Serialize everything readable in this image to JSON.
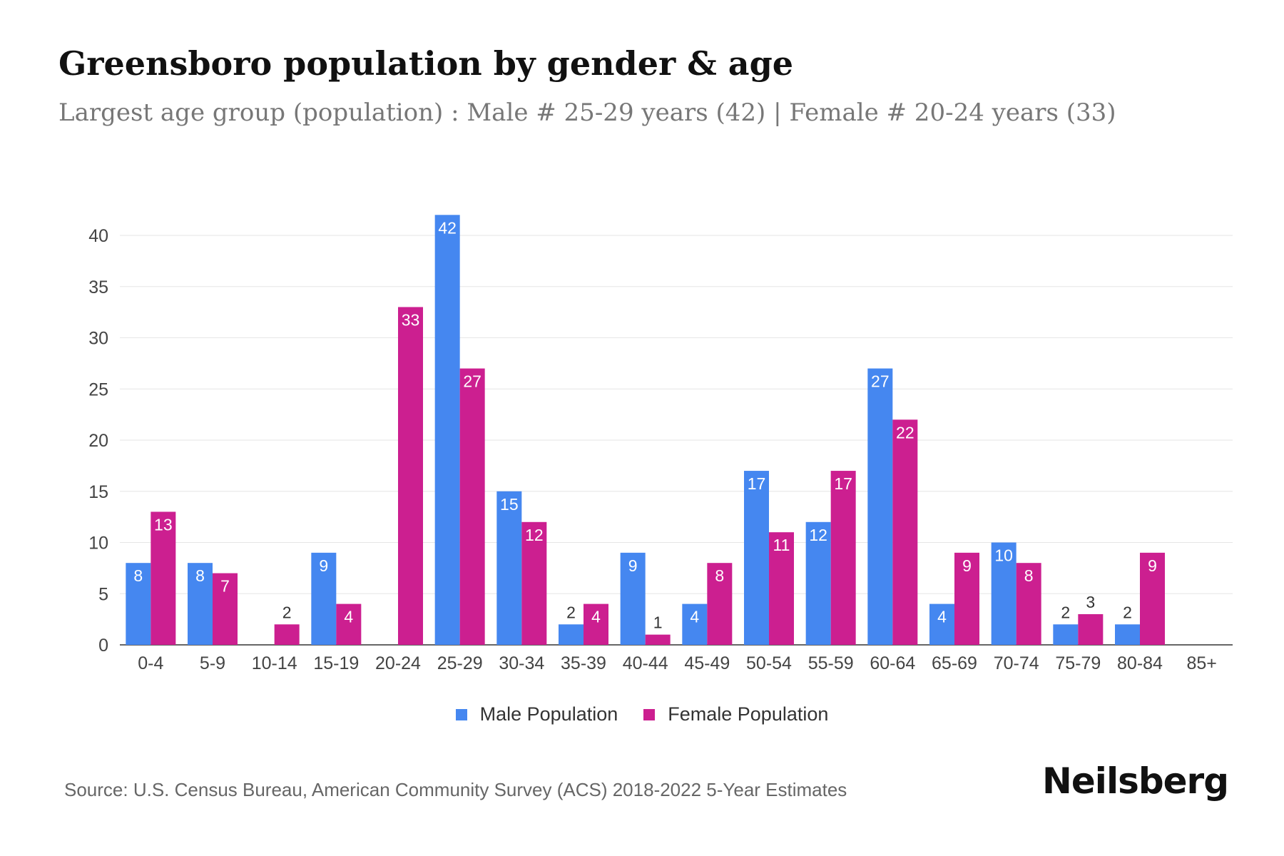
{
  "chart_data": {
    "type": "bar",
    "title": "Greensboro population by gender & age",
    "subtitle": "Largest age group (population) : Male # 25-29 years (42) | Female # 20-24 years (33)",
    "categories": [
      "0-4",
      "5-9",
      "10-14",
      "15-19",
      "20-24",
      "25-29",
      "30-34",
      "35-39",
      "40-44",
      "45-49",
      "50-54",
      "55-59",
      "60-64",
      "65-69",
      "70-74",
      "75-79",
      "80-84",
      "85+"
    ],
    "series": [
      {
        "name": "Male Population",
        "color": "#4587f0",
        "values": [
          8,
          8,
          0,
          9,
          0,
          42,
          15,
          2,
          9,
          4,
          17,
          12,
          27,
          4,
          10,
          2,
          2,
          0
        ]
      },
      {
        "name": "Female Population",
        "color": "#cc1f90",
        "values": [
          13,
          7,
          2,
          4,
          33,
          27,
          12,
          4,
          1,
          8,
          11,
          17,
          22,
          9,
          8,
          3,
          9,
          0
        ]
      }
    ],
    "yticks": [
      0,
      5,
      10,
      15,
      20,
      25,
      30,
      35,
      40
    ],
    "ylim": [
      0,
      42
    ],
    "xlabel": "",
    "ylabel": "",
    "grid": true,
    "legend_position": "bottom-center"
  },
  "source": "Source: U.S. Census Bureau, American Community Survey (ACS) 2018-2022 5-Year Estimates",
  "brand": "Neilsberg"
}
